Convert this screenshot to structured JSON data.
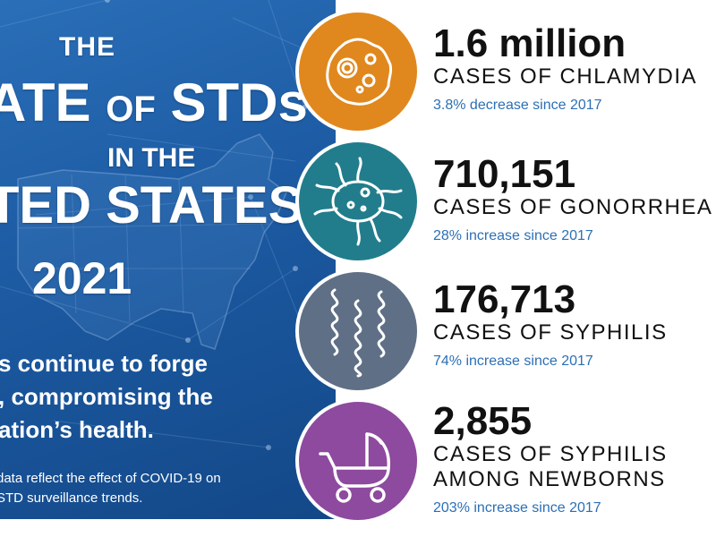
{
  "infographic": {
    "title": {
      "line1": "THE",
      "line2_big1": "ATE",
      "line2_small": "OF",
      "line2_big2": "STDs",
      "line3": "IN THE",
      "line4": "TED STATES,",
      "line5": "2021"
    },
    "tagline": "s continue to forge , compromising the ation’s health.",
    "tagline_lines": [
      "s continue to forge",
      ", compromising the",
      "ation’s health."
    ],
    "note_lines": [
      "data reflect the effect of COVID-19 on",
      "STD surveillance trends."
    ],
    "colors": {
      "panel_blue": "#1c5aa2",
      "chlamydia": "#e0881d",
      "gonorrhea": "#217d8c",
      "syphilis": "#5f6f85",
      "congenital": "#8d4a9e",
      "change_text": "#2c6fb5"
    },
    "stats": [
      {
        "number": "1.6 million",
        "label_lines": [
          "CASES OF CHLAMYDIA"
        ],
        "change": "3.8% decrease since 2017",
        "icon": "bacteria-icon"
      },
      {
        "number": "710,151",
        "label_lines": [
          "CASES OF GONORRHEA"
        ],
        "change": "28% increase since 2017",
        "icon": "microbe-icon"
      },
      {
        "number": "176,713",
        "label_lines": [
          "CASES OF SYPHILIS"
        ],
        "change": "74% increase since 2017",
        "icon": "spirochete-icon"
      },
      {
        "number": "2,855",
        "label_lines": [
          "CASES OF SYPHILIS",
          "AMONG NEWBORNS"
        ],
        "change": "203% increase since 2017",
        "icon": "baby-stroller-icon"
      }
    ]
  }
}
